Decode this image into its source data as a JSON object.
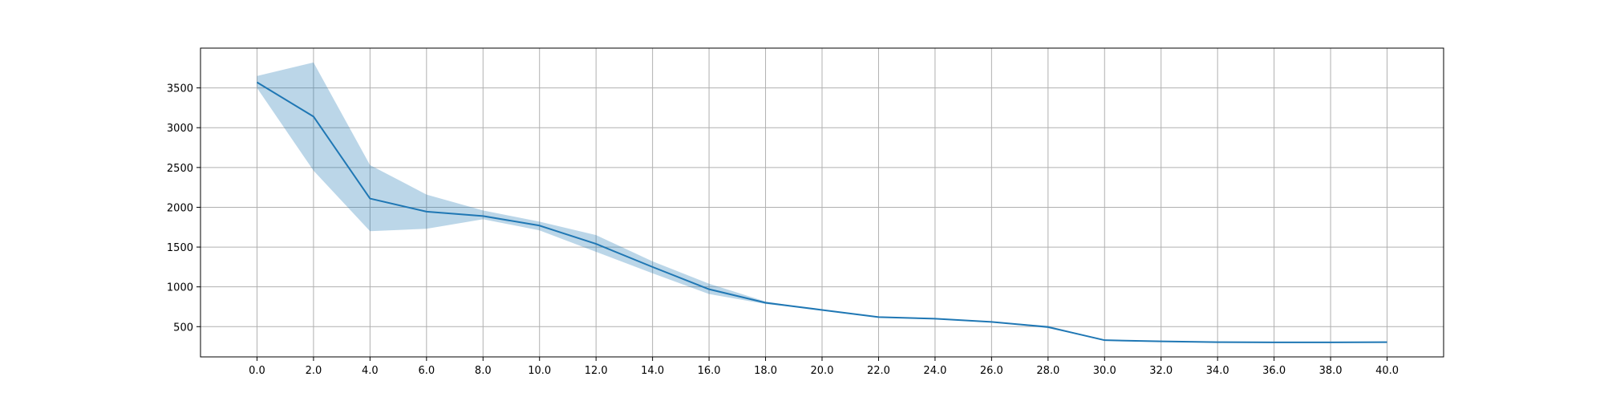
{
  "chart_data": {
    "type": "line",
    "title": "",
    "xlabel": "",
    "ylabel": "",
    "x": [
      0,
      2,
      4,
      6,
      8,
      10,
      12,
      14,
      16,
      18,
      20,
      22,
      24,
      26,
      28,
      30,
      32,
      34,
      36,
      38,
      40
    ],
    "series": [
      {
        "values": [
          3570,
          3140,
          2110,
          1945,
          1890,
          1770,
          1540,
          1250,
          970,
          800,
          710,
          620,
          600,
          560,
          495,
          330,
          315,
          305,
          303,
          303,
          305
        ],
        "band_upper": [
          3650,
          3820,
          2530,
          2160,
          1960,
          1820,
          1650,
          1320,
          1040,
          815,
          710,
          620,
          600,
          560,
          510,
          330,
          315,
          305,
          303,
          303,
          305
        ],
        "band_lower": [
          3500,
          2460,
          1700,
          1730,
          1850,
          1710,
          1440,
          1170,
          910,
          785,
          710,
          620,
          600,
          560,
          480,
          330,
          315,
          305,
          303,
          303,
          305
        ],
        "color": "#1f77b4",
        "band_color": "#1f77b4",
        "band_opacity": 0.3
      }
    ],
    "xlim": [
      -2,
      42
    ],
    "ylim": [
      120,
      4000
    ],
    "xticks": [
      0,
      2,
      4,
      6,
      8,
      10,
      12,
      14,
      16,
      18,
      20,
      22,
      24,
      26,
      28,
      30,
      32,
      34,
      36,
      38,
      40
    ],
    "xtick_labels": [
      "0.0",
      "2.0",
      "4.0",
      "6.0",
      "8.0",
      "10.0",
      "12.0",
      "14.0",
      "16.0",
      "18.0",
      "20.0",
      "22.0",
      "24.0",
      "26.0",
      "28.0",
      "30.0",
      "32.0",
      "34.0",
      "36.0",
      "38.0",
      "40.0"
    ],
    "yticks": [
      500,
      1000,
      1500,
      2000,
      2500,
      3000,
      3500
    ],
    "ytick_labels": [
      "500",
      "1000",
      "1500",
      "2000",
      "2500",
      "3000",
      "3500"
    ],
    "grid": true,
    "legend": "none"
  }
}
